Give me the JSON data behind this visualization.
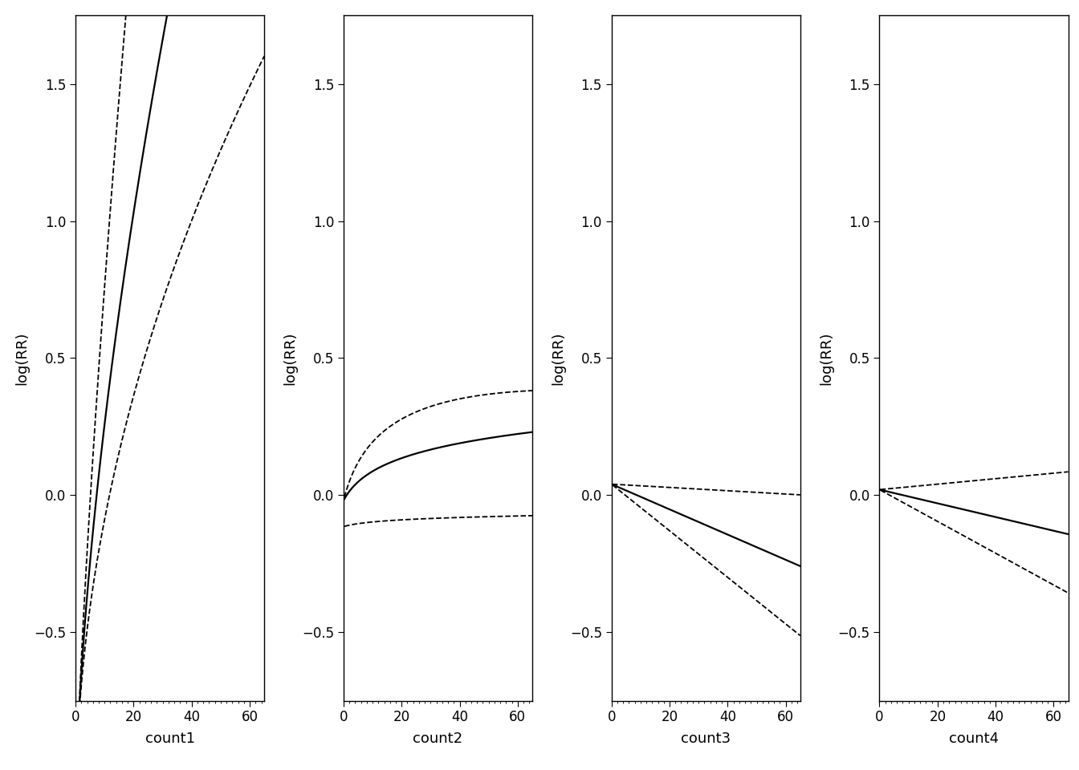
{
  "panels": [
    {
      "xlabel": "count1",
      "ylabel": "log(RR)",
      "xlim": [
        0,
        65
      ],
      "ylim": [
        -0.75,
        1.75
      ],
      "yticks": [
        -0.5,
        0.0,
        0.5,
        1.0,
        1.5
      ],
      "xticks": [
        0,
        20,
        40,
        60
      ]
    },
    {
      "xlabel": "count2",
      "ylabel": "log(RR)",
      "xlim": [
        0,
        65
      ],
      "ylim": [
        -0.75,
        1.75
      ],
      "yticks": [
        -0.5,
        0.0,
        0.5,
        1.0,
        1.5
      ],
      "xticks": [
        0,
        20,
        40,
        60
      ]
    },
    {
      "xlabel": "count3",
      "ylabel": "log(RR)",
      "xlim": [
        0,
        65
      ],
      "ylim": [
        -0.75,
        1.75
      ],
      "yticks": [
        -0.5,
        0.0,
        0.5,
        1.0,
        1.5
      ],
      "xticks": [
        0,
        20,
        40,
        60
      ]
    },
    {
      "xlabel": "count4",
      "ylabel": "log(RR)",
      "xlim": [
        0,
        65
      ],
      "ylim": [
        -0.75,
        1.75
      ],
      "yticks": [
        -0.5,
        0.0,
        0.5,
        1.0,
        1.5
      ],
      "xticks": [
        0,
        20,
        40,
        60
      ]
    }
  ],
  "line_color": "#000000",
  "background_color": "#ffffff",
  "font_family": "DejaVu Sans",
  "font_size": 13
}
